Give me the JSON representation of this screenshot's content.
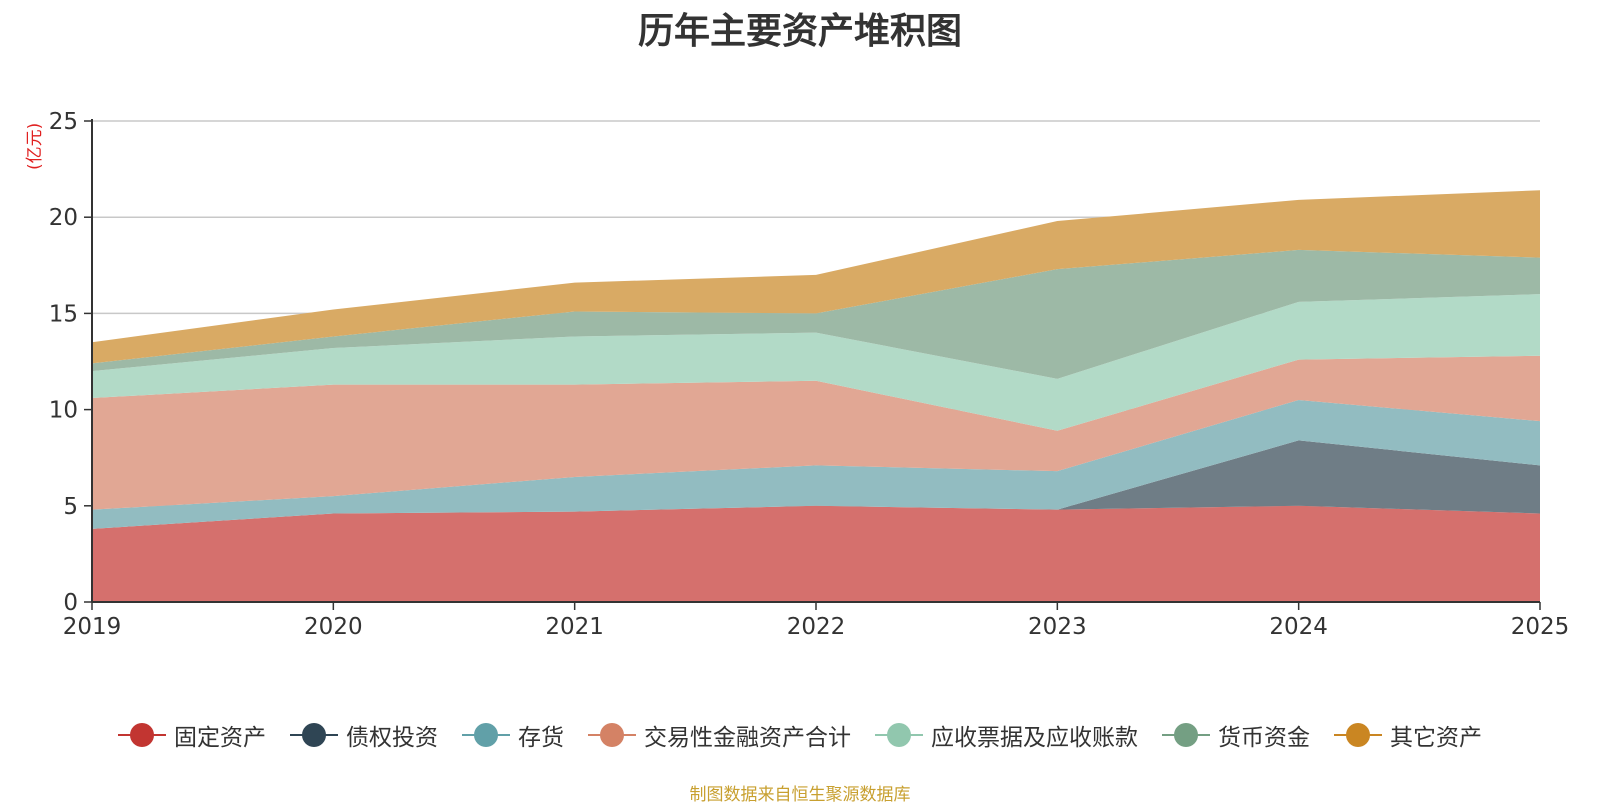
{
  "chart_data": {
    "type": "area",
    "stacked": true,
    "title": "历年主要资产堆积图",
    "ylabel": "(亿元)",
    "xlabel": "",
    "x": [
      "2019",
      "2020",
      "2021",
      "2022",
      "2023",
      "2024",
      "2025"
    ],
    "ylim": [
      0,
      25
    ],
    "yticks": [
      0,
      5,
      10,
      15,
      20,
      25
    ],
    "grid": true,
    "legend_position": "bottom",
    "series": [
      {
        "name": "固定资产",
        "color": "#c23531",
        "fill": "#d5706d",
        "values": [
          3.8,
          4.6,
          4.7,
          5.0,
          4.8,
          5.0,
          4.6
        ]
      },
      {
        "name": "债权投资",
        "color": "#2f4554",
        "fill": "#6f7d86",
        "values": [
          0,
          0,
          0,
          0,
          0,
          3.4,
          2.5
        ]
      },
      {
        "name": "存货",
        "color": "#61a0a8",
        "fill": "#92bcc1",
        "values": [
          1.0,
          0.9,
          1.8,
          2.1,
          2.0,
          2.1,
          2.3
        ]
      },
      {
        "name": "交易性金融资产合计",
        "color": "#d48265",
        "fill": "#e1a794",
        "values": [
          5.8,
          5.8,
          4.8,
          4.4,
          2.1,
          2.1,
          3.4
        ]
      },
      {
        "name": "应收票据及应收账款",
        "color": "#91c7ae",
        "fill": "#b2dac7",
        "values": [
          1.4,
          1.9,
          2.5,
          2.5,
          2.7,
          3.0,
          3.2
        ]
      },
      {
        "name": "货币资金",
        "color": "#749f83",
        "fill": "#9db9a6",
        "values": [
          0.4,
          0.6,
          1.3,
          1.0,
          5.7,
          2.7,
          1.9
        ]
      },
      {
        "name": "其它资产",
        "color": "#ca8622",
        "fill": "#d9aa64",
        "values": [
          1.1,
          1.4,
          1.5,
          2.0,
          2.5,
          2.6,
          3.5
        ]
      }
    ]
  },
  "source_note": "制图数据来自恒生聚源数据库"
}
